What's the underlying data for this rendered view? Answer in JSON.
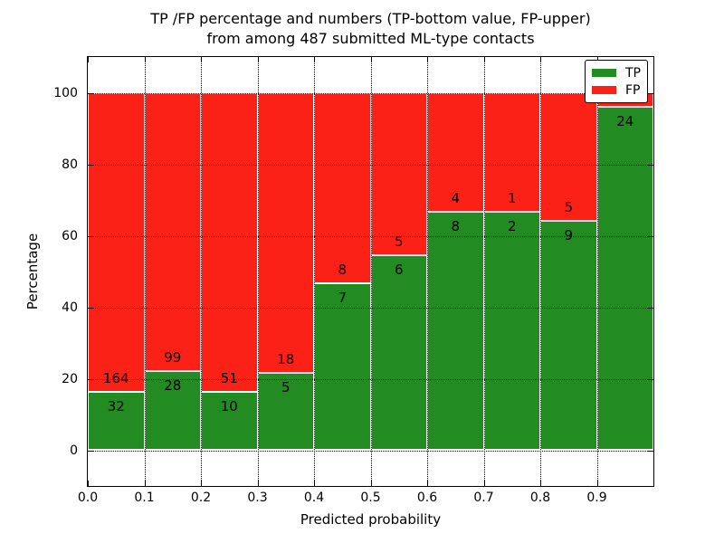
{
  "title": {
    "line1": "TP /FP percentage and numbers (TP-bottom value, FP-upper)",
    "line2": "from among 487 submitted ML-type contacts"
  },
  "axes": {
    "xlabel": "Predicted probability",
    "ylabel": "Percentage",
    "x_tick_labels": [
      "0.0",
      "0.1",
      "0.2",
      "0.3",
      "0.4",
      "0.5",
      "0.6",
      "0.7",
      "0.8",
      "0.9"
    ],
    "y_tick_labels": [
      "0",
      "20",
      "40",
      "60",
      "80",
      "100"
    ]
  },
  "legend": [
    {
      "label": "TP",
      "color": "#228B22"
    },
    {
      "label": "FP",
      "color": "#fc2116"
    }
  ],
  "chart_data": {
    "type": "bar",
    "stacked": true,
    "normalized_to": "percentage of bin total (TP+FP = 100%)",
    "title": "TP /FP percentage and numbers (TP-bottom value, FP-upper) from among 487 submitted ML-type contacts",
    "xlabel": "Predicted probability",
    "ylabel": "Percentage",
    "categories": [
      "0.0-0.1",
      "0.1-0.2",
      "0.2-0.3",
      "0.3-0.4",
      "0.4-0.5",
      "0.5-0.6",
      "0.6-0.7",
      "0.7-0.8",
      "0.8-0.9",
      "0.9-1.0"
    ],
    "series": [
      {
        "name": "TP",
        "color": "#228B22",
        "counts": [
          32,
          28,
          10,
          5,
          7,
          6,
          8,
          2,
          9,
          24
        ]
      },
      {
        "name": "FP",
        "color": "#fc2116",
        "counts": [
          164,
          99,
          51,
          18,
          8,
          5,
          4,
          1,
          5,
          1
        ]
      }
    ],
    "tp_percent": [
      16.3,
      22.0,
      16.4,
      21.7,
      46.7,
      54.5,
      66.7,
      66.7,
      64.3,
      96.0
    ],
    "total_contacts": 487,
    "xlim": [
      0.0,
      1.0
    ],
    "ylim": [
      -10,
      110
    ],
    "x_tick_values": [
      0.0,
      0.1,
      0.2,
      0.3,
      0.4,
      0.5,
      0.6,
      0.7,
      0.8,
      0.9
    ],
    "y_tick_values": [
      0,
      20,
      40,
      60,
      80,
      100
    ],
    "grid": true,
    "bar_edge_color": "#ffffff",
    "legend_position": "upper right",
    "last_bin_fp_label_hidden_behind_legend": true
  }
}
